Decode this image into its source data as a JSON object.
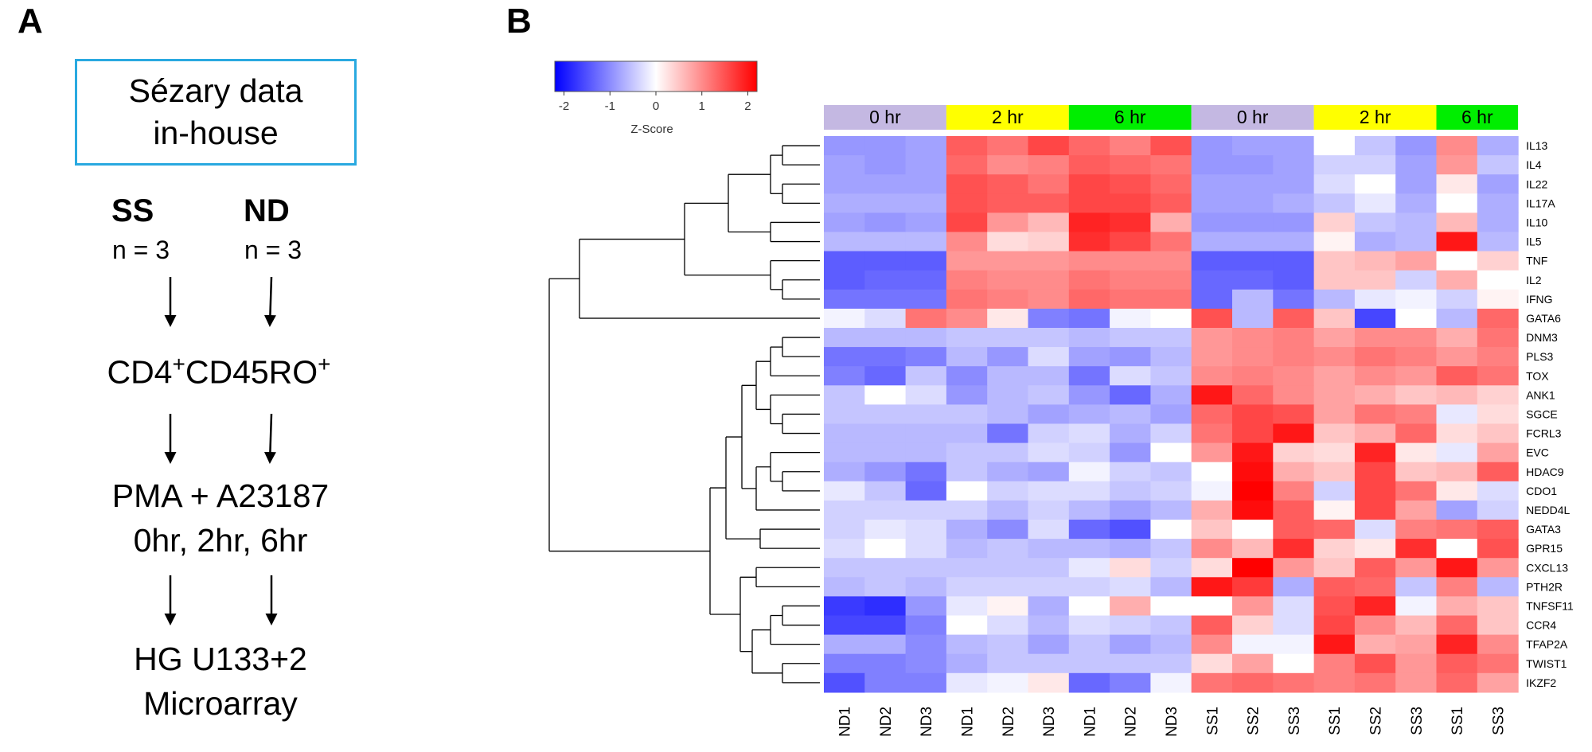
{
  "panel_a": {
    "letter": "A",
    "source_box": {
      "line1": "Sézary data",
      "line2": "in-house"
    },
    "groups": [
      {
        "name": "SS",
        "n": "n = 3"
      },
      {
        "name": "ND",
        "n": "n = 3"
      }
    ],
    "step_cells": {
      "base": "CD4",
      "sup1": "+",
      "mid": "CD45RO",
      "sup2": "+"
    },
    "step_stim": {
      "line1": "PMA + A23187",
      "line2": "0hr, 2hr, 6hr"
    },
    "step_array": {
      "line1": "HG U133+2",
      "line2": "Microarray"
    }
  },
  "panel_b": {
    "letter": "B"
  },
  "chart_data": {
    "type": "heatmap",
    "title": "",
    "colorbar": {
      "label": "Z-Score",
      "range": [
        -2.2,
        2.2
      ],
      "ticks": [
        -2,
        -1,
        0,
        1,
        2
      ],
      "tick_labels": [
        "-2",
        "-1",
        "0",
        "1",
        "2"
      ],
      "colors": {
        "low": "#0000ff",
        "mid": "#ffffff",
        "high": "#ff0000"
      }
    },
    "time_groups": [
      {
        "label": "0 hr",
        "span": 3,
        "color": "#c4b8e2"
      },
      {
        "label": "2 hr",
        "span": 3,
        "color": "#ffff00"
      },
      {
        "label": "6 hr",
        "span": 3,
        "color": "#00ee00"
      },
      {
        "label": "0 hr",
        "span": 3,
        "color": "#c4b8e2"
      },
      {
        "label": "2 hr",
        "span": 3,
        "color": "#ffff00"
      },
      {
        "label": "6 hr",
        "span": 2,
        "color": "#00ee00"
      }
    ],
    "columns": [
      "ND1",
      "ND2",
      "ND3",
      "ND1",
      "ND2",
      "ND3",
      "ND1",
      "ND2",
      "ND3",
      "SS1",
      "SS2",
      "SS3",
      "SS1",
      "SS2",
      "SS3",
      "SS1",
      "SS3"
    ],
    "rows": [
      "IL13",
      "IL4",
      "IL22",
      "IL17A",
      "IL10",
      "IL5",
      "TNF",
      "IL2",
      "IFNG",
      "GATA6",
      "DNM3",
      "PLS3",
      "TOX",
      "ANK1",
      "SGCE",
      "FCRL3",
      "EVC",
      "HDAC9",
      "CDO1",
      "NEDD4L",
      "GATA3",
      "GPR15",
      "CXCL13",
      "PTH2R",
      "TNFSF11",
      "CCR4",
      "TFAP2A",
      "TWIST1",
      "IKZF2"
    ],
    "values": [
      [
        -0.9,
        -0.9,
        -0.8,
        1.4,
        1.2,
        1.6,
        1.3,
        1.1,
        1.5,
        -0.9,
        -0.8,
        -0.8,
        0.0,
        -0.5,
        -0.9,
        1.0,
        -0.7
      ],
      [
        -0.8,
        -0.9,
        -0.8,
        1.3,
        1.0,
        1.1,
        1.4,
        1.3,
        1.2,
        -0.9,
        -0.9,
        -0.8,
        -0.4,
        -0.4,
        -0.8,
        0.9,
        -0.5
      ],
      [
        -0.8,
        -0.8,
        -0.8,
        1.5,
        1.4,
        1.2,
        1.6,
        1.5,
        1.3,
        -0.8,
        -0.8,
        -0.8,
        -0.3,
        0.0,
        -0.8,
        0.2,
        -0.8
      ],
      [
        -0.7,
        -0.7,
        -0.7,
        1.5,
        1.4,
        1.4,
        1.6,
        1.6,
        1.4,
        -0.8,
        -0.8,
        -0.7,
        -0.5,
        -0.2,
        -0.7,
        0.0,
        -0.7
      ],
      [
        -0.8,
        -0.9,
        -0.8,
        1.6,
        0.9,
        0.6,
        1.9,
        1.8,
        0.7,
        -0.9,
        -0.9,
        -0.9,
        0.4,
        -0.5,
        -0.6,
        0.6,
        -0.7
      ],
      [
        -0.6,
        -0.6,
        -0.6,
        1.0,
        0.3,
        0.4,
        1.8,
        1.6,
        1.2,
        -0.7,
        -0.7,
        -0.7,
        0.1,
        -0.7,
        -0.6,
        2.0,
        -0.6
      ],
      [
        -1.4,
        -1.4,
        -1.4,
        0.9,
        0.9,
        0.9,
        1.0,
        1.0,
        1.0,
        -1.4,
        -1.4,
        -1.4,
        0.5,
        0.6,
        0.8,
        0.0,
        0.4
      ],
      [
        -1.4,
        -1.3,
        -1.3,
        1.1,
        1.0,
        1.0,
        1.2,
        1.1,
        1.1,
        -1.3,
        -1.3,
        -1.4,
        0.5,
        0.5,
        -0.4,
        0.7,
        0.0
      ],
      [
        -1.2,
        -1.2,
        -1.2,
        1.2,
        1.1,
        1.0,
        1.3,
        1.2,
        1.2,
        -1.3,
        -0.6,
        -1.2,
        -0.6,
        -0.2,
        -0.1,
        -0.4,
        0.1
      ],
      [
        -0.1,
        -0.3,
        1.2,
        1.0,
        0.2,
        -1.1,
        -1.2,
        -0.1,
        0.0,
        1.5,
        -0.6,
        1.4,
        0.5,
        -1.6,
        0.0,
        -0.6,
        1.3
      ],
      [
        -0.6,
        -0.6,
        -0.6,
        -0.5,
        -0.5,
        -0.5,
        -0.6,
        -0.5,
        -0.5,
        0.9,
        1.0,
        1.1,
        0.8,
        1.0,
        1.0,
        0.7,
        1.2
      ],
      [
        -1.2,
        -1.2,
        -1.1,
        -0.6,
        -0.9,
        -0.3,
        -0.8,
        -0.9,
        -0.6,
        0.9,
        1.0,
        1.1,
        1.0,
        1.2,
        1.1,
        0.9,
        1.1
      ],
      [
        -1.1,
        -1.3,
        -0.5,
        -1.0,
        -0.6,
        -0.6,
        -1.2,
        -0.3,
        -0.5,
        1.0,
        1.1,
        1.0,
        0.8,
        1.0,
        0.9,
        1.4,
        1.2
      ],
      [
        -0.5,
        0.0,
        -0.3,
        -0.9,
        -0.6,
        -0.5,
        -0.9,
        -1.3,
        -0.7,
        2.0,
        1.3,
        1.0,
        0.8,
        0.7,
        0.5,
        0.6,
        0.4
      ],
      [
        -0.5,
        -0.5,
        -0.5,
        -0.5,
        -0.6,
        -0.8,
        -0.7,
        -0.6,
        -0.8,
        1.3,
        1.6,
        1.5,
        0.8,
        1.2,
        1.1,
        -0.2,
        0.3
      ],
      [
        -0.6,
        -0.6,
        -0.6,
        -0.6,
        -1.2,
        -0.4,
        -0.3,
        -0.7,
        -0.4,
        1.2,
        1.6,
        2.0,
        0.5,
        0.7,
        1.3,
        0.3,
        0.5
      ],
      [
        -0.6,
        -0.6,
        -0.6,
        -0.5,
        -0.5,
        -0.3,
        -0.4,
        -0.9,
        0.0,
        0.9,
        2.0,
        0.4,
        0.3,
        1.9,
        0.2,
        -0.2,
        0.8
      ],
      [
        -0.7,
        -0.9,
        -1.2,
        -0.5,
        -0.7,
        -0.8,
        -0.1,
        -0.4,
        -0.5,
        0.0,
        2.1,
        0.7,
        0.5,
        1.6,
        0.5,
        0.6,
        1.4
      ],
      [
        -0.2,
        -0.5,
        -1.3,
        0.0,
        -0.4,
        -0.3,
        -0.3,
        -0.5,
        -0.4,
        -0.1,
        2.2,
        1.1,
        -0.4,
        1.6,
        1.2,
        0.2,
        -0.3
      ],
      [
        -0.4,
        -0.4,
        -0.4,
        -0.4,
        -0.6,
        -0.4,
        -0.6,
        -0.8,
        -0.6,
        0.7,
        2.1,
        1.4,
        0.1,
        1.6,
        0.8,
        -0.8,
        -0.4
      ],
      [
        -0.4,
        -0.2,
        -0.3,
        -0.7,
        -1.0,
        -0.3,
        -1.3,
        -1.5,
        0.0,
        0.5,
        0.0,
        1.4,
        1.3,
        -0.3,
        1.1,
        1.2,
        1.4
      ],
      [
        -0.3,
        0.0,
        -0.3,
        -0.6,
        -0.5,
        -0.6,
        -0.6,
        -0.7,
        -0.5,
        1.0,
        0.6,
        1.8,
        0.4,
        0.2,
        1.8,
        0.0,
        1.5
      ],
      [
        -0.5,
        -0.5,
        -0.5,
        -0.5,
        -0.5,
        -0.5,
        -0.2,
        0.3,
        -0.4,
        0.3,
        2.2,
        0.9,
        0.5,
        1.4,
        0.9,
        2.0,
        0.9
      ],
      [
        -0.6,
        -0.5,
        -0.6,
        -0.4,
        -0.4,
        -0.4,
        -0.4,
        -0.3,
        -0.6,
        2.0,
        1.7,
        -0.7,
        1.4,
        1.3,
        -0.5,
        1.1,
        -0.6
      ],
      [
        -1.7,
        -1.8,
        -0.9,
        -0.2,
        0.1,
        -0.7,
        0.0,
        0.7,
        0.0,
        0.0,
        0.9,
        -0.3,
        1.5,
        1.9,
        -0.1,
        0.7,
        0.5
      ],
      [
        -1.6,
        -1.6,
        -1.1,
        0.0,
        -0.3,
        -0.6,
        -0.3,
        -0.4,
        -0.5,
        1.4,
        0.4,
        -0.3,
        1.6,
        1.0,
        0.6,
        1.3,
        0.5
      ],
      [
        -0.7,
        -0.7,
        -1.0,
        -0.6,
        -0.5,
        -0.8,
        -0.5,
        -0.8,
        -0.6,
        1.0,
        -0.1,
        -0.1,
        2.0,
        0.7,
        0.8,
        1.9,
        1.0
      ],
      [
        -1.1,
        -1.1,
        -1.0,
        -0.7,
        -0.5,
        -0.5,
        -0.5,
        -0.5,
        -0.5,
        0.3,
        0.8,
        0.0,
        1.1,
        1.5,
        0.9,
        1.4,
        1.2
      ],
      [
        -1.5,
        -1.1,
        -1.1,
        -0.2,
        -0.1,
        0.2,
        -1.3,
        -1.1,
        -0.1,
        1.2,
        1.3,
        1.2,
        1.1,
        1.2,
        0.9,
        1.3,
        0.8
      ]
    ],
    "row_dendrogram": {
      "groups": [
        {
          "members": [
            0,
            1,
            2,
            3,
            4,
            5,
            6,
            7,
            8,
            9
          ],
          "structure": "cytokines"
        },
        {
          "members": [
            10,
            11,
            12,
            13,
            14,
            15,
            16,
            17,
            18,
            19,
            20,
            21,
            22,
            23,
            24,
            25,
            26,
            27,
            28
          ],
          "structure": "ss-genes"
        }
      ]
    }
  }
}
